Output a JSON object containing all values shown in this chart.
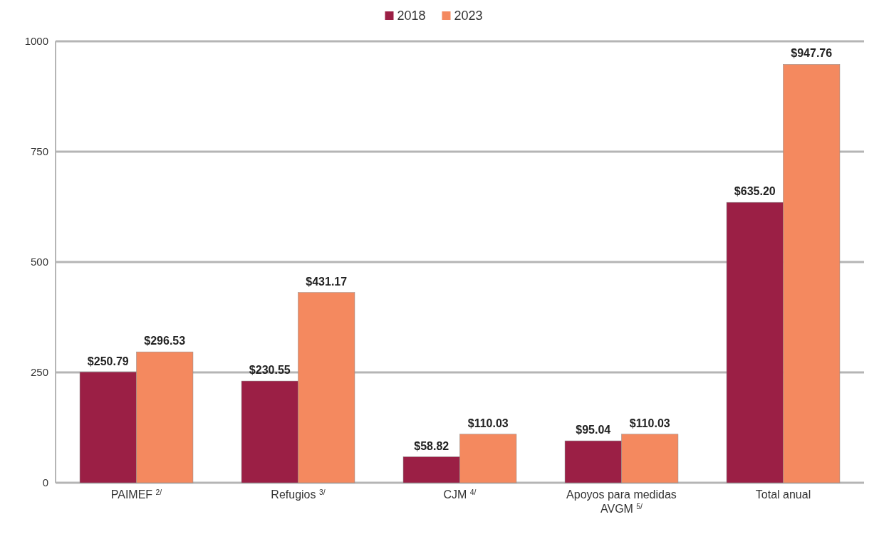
{
  "chart_data": {
    "type": "bar",
    "categories": [
      "PAIMEF $^{2/}$",
      "Refugios $^{3/}$",
      "CJM $^{4/}$",
      "Apoyos para medidas AVGM $^{5/}$",
      "Total anual"
    ],
    "series": [
      {
        "name": "2018",
        "color": "#9b1f45",
        "values": [
          250.79,
          230.55,
          58.82,
          95.04,
          635.2
        ],
        "value_labels": [
          "$250.79",
          "$230.55",
          "$58.82",
          "$95.04",
          "$635.20"
        ]
      },
      {
        "name": "2023",
        "color": "#f4895f",
        "values": [
          296.53,
          431.17,
          110.03,
          110.03,
          947.76
        ],
        "value_labels": [
          "$296.53",
          "$431.17",
          "$110.03",
          "$110.03",
          "$947.76"
        ]
      }
    ],
    "ylim": [
      0,
      1000
    ],
    "yticks": [
      0,
      250,
      500,
      750,
      1000
    ],
    "grid": "y",
    "legend": "top"
  }
}
